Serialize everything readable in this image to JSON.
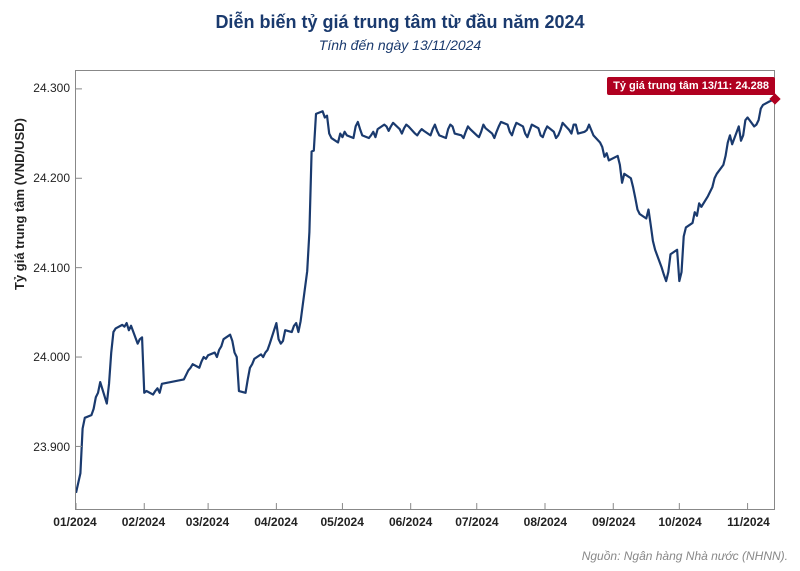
{
  "chart": {
    "type": "line",
    "title": "Diễn biến tỷ giá trung tâm từ đầu năm 2024",
    "subtitle": "Tính đến ngày 13/11/2024",
    "ylabel": "Tỷ giá trung tâm (VND/USD)",
    "source": "Nguồn: Ngân hàng Nhà nước (NHNN).",
    "line_color": "#1a3a6e",
    "line_width": 2.2,
    "background_color": "#ffffff",
    "border_color": "#888888",
    "title_color": "#1a3a6e",
    "title_fontsize": 18,
    "subtitle_fontsize": 14,
    "label_fontsize": 13,
    "tick_fontsize": 12,
    "source_color": "#888888",
    "annotation": {
      "text": "Tỷ giá trung tâm 13/11: 24.288",
      "bg_color": "#b00020",
      "text_color": "#ffffff",
      "fontsize": 11
    },
    "end_marker": {
      "color": "#b00020",
      "size": 8
    },
    "x_ticks": [
      "01/2024",
      "02/2024",
      "03/2024",
      "04/2024",
      "05/2024",
      "06/2024",
      "07/2024",
      "08/2024",
      "09/2024",
      "10/2024",
      "11/2024"
    ],
    "x_tick_positions": [
      0,
      31,
      60,
      91,
      121,
      152,
      182,
      213,
      244,
      274,
      305
    ],
    "y_ticks": [
      23900,
      24000,
      24100,
      24200,
      24300
    ],
    "ylim": [
      23830,
      24320
    ],
    "xlim": [
      0,
      317
    ],
    "data": [
      {
        "x": 0,
        "y": 23848
      },
      {
        "x": 2,
        "y": 23870
      },
      {
        "x": 3,
        "y": 23920
      },
      {
        "x": 4,
        "y": 23932
      },
      {
        "x": 7,
        "y": 23935
      },
      {
        "x": 8,
        "y": 23942
      },
      {
        "x": 9,
        "y": 23955
      },
      {
        "x": 10,
        "y": 23960
      },
      {
        "x": 11,
        "y": 23972
      },
      {
        "x": 14,
        "y": 23948
      },
      {
        "x": 15,
        "y": 23970
      },
      {
        "x": 16,
        "y": 24005
      },
      {
        "x": 17,
        "y": 24028
      },
      {
        "x": 18,
        "y": 24032
      },
      {
        "x": 21,
        "y": 24036
      },
      {
        "x": 22,
        "y": 24034
      },
      {
        "x": 23,
        "y": 24038
      },
      {
        "x": 24,
        "y": 24030
      },
      {
        "x": 25,
        "y": 24035
      },
      {
        "x": 28,
        "y": 24015
      },
      {
        "x": 29,
        "y": 24020
      },
      {
        "x": 30,
        "y": 24022
      },
      {
        "x": 31,
        "y": 23960
      },
      {
        "x": 32,
        "y": 23962
      },
      {
        "x": 35,
        "y": 23958
      },
      {
        "x": 36,
        "y": 23962
      },
      {
        "x": 37,
        "y": 23965
      },
      {
        "x": 38,
        "y": 23960
      },
      {
        "x": 39,
        "y": 23970
      },
      {
        "x": 49,
        "y": 23975
      },
      {
        "x": 50,
        "y": 23980
      },
      {
        "x": 51,
        "y": 23985
      },
      {
        "x": 52,
        "y": 23988
      },
      {
        "x": 53,
        "y": 23992
      },
      {
        "x": 56,
        "y": 23988
      },
      {
        "x": 57,
        "y": 23995
      },
      {
        "x": 58,
        "y": 24000
      },
      {
        "x": 59,
        "y": 23998
      },
      {
        "x": 60,
        "y": 24002
      },
      {
        "x": 63,
        "y": 24005
      },
      {
        "x": 64,
        "y": 24000
      },
      {
        "x": 65,
        "y": 24008
      },
      {
        "x": 66,
        "y": 24012
      },
      {
        "x": 67,
        "y": 24020
      },
      {
        "x": 70,
        "y": 24025
      },
      {
        "x": 71,
        "y": 24018
      },
      {
        "x": 72,
        "y": 24005
      },
      {
        "x": 73,
        "y": 24000
      },
      {
        "x": 74,
        "y": 23962
      },
      {
        "x": 77,
        "y": 23960
      },
      {
        "x": 78,
        "y": 23975
      },
      {
        "x": 79,
        "y": 23988
      },
      {
        "x": 80,
        "y": 23992
      },
      {
        "x": 81,
        "y": 23998
      },
      {
        "x": 84,
        "y": 24003
      },
      {
        "x": 85,
        "y": 24000
      },
      {
        "x": 86,
        "y": 24005
      },
      {
        "x": 87,
        "y": 24008
      },
      {
        "x": 88,
        "y": 24015
      },
      {
        "x": 91,
        "y": 24038
      },
      {
        "x": 92,
        "y": 24020
      },
      {
        "x": 93,
        "y": 24015
      },
      {
        "x": 94,
        "y": 24018
      },
      {
        "x": 95,
        "y": 24030
      },
      {
        "x": 98,
        "y": 24028
      },
      {
        "x": 99,
        "y": 24035
      },
      {
        "x": 100,
        "y": 24038
      },
      {
        "x": 101,
        "y": 24028
      },
      {
        "x": 102,
        "y": 24040
      },
      {
        "x": 105,
        "y": 24096
      },
      {
        "x": 106,
        "y": 24140
      },
      {
        "x": 107,
        "y": 24230
      },
      {
        "x": 108,
        "y": 24231
      },
      {
        "x": 109,
        "y": 24272
      },
      {
        "x": 112,
        "y": 24275
      },
      {
        "x": 113,
        "y": 24268
      },
      {
        "x": 114,
        "y": 24270
      },
      {
        "x": 115,
        "y": 24250
      },
      {
        "x": 116,
        "y": 24245
      },
      {
        "x": 119,
        "y": 24240
      },
      {
        "x": 120,
        "y": 24250
      },
      {
        "x": 121,
        "y": 24246
      },
      {
        "x": 122,
        "y": 24252
      },
      {
        "x": 123,
        "y": 24248
      },
      {
        "x": 126,
        "y": 24245
      },
      {
        "x": 127,
        "y": 24258
      },
      {
        "x": 128,
        "y": 24263
      },
      {
        "x": 129,
        "y": 24255
      },
      {
        "x": 130,
        "y": 24248
      },
      {
        "x": 133,
        "y": 24245
      },
      {
        "x": 134,
        "y": 24248
      },
      {
        "x": 135,
        "y": 24252
      },
      {
        "x": 136,
        "y": 24246
      },
      {
        "x": 137,
        "y": 24255
      },
      {
        "x": 140,
        "y": 24260
      },
      {
        "x": 141,
        "y": 24258
      },
      {
        "x": 142,
        "y": 24253
      },
      {
        "x": 143,
        "y": 24258
      },
      {
        "x": 144,
        "y": 24262
      },
      {
        "x": 147,
        "y": 24255
      },
      {
        "x": 148,
        "y": 24250
      },
      {
        "x": 149,
        "y": 24256
      },
      {
        "x": 150,
        "y": 24260
      },
      {
        "x": 151,
        "y": 24258
      },
      {
        "x": 154,
        "y": 24250
      },
      {
        "x": 155,
        "y": 24248
      },
      {
        "x": 156,
        "y": 24252
      },
      {
        "x": 157,
        "y": 24255
      },
      {
        "x": 158,
        "y": 24253
      },
      {
        "x": 161,
        "y": 24248
      },
      {
        "x": 162,
        "y": 24255
      },
      {
        "x": 163,
        "y": 24260
      },
      {
        "x": 164,
        "y": 24253
      },
      {
        "x": 165,
        "y": 24248
      },
      {
        "x": 168,
        "y": 24245
      },
      {
        "x": 169,
        "y": 24255
      },
      {
        "x": 170,
        "y": 24260
      },
      {
        "x": 171,
        "y": 24258
      },
      {
        "x": 172,
        "y": 24250
      },
      {
        "x": 175,
        "y": 24248
      },
      {
        "x": 176,
        "y": 24245
      },
      {
        "x": 177,
        "y": 24252
      },
      {
        "x": 178,
        "y": 24258
      },
      {
        "x": 179,
        "y": 24255
      },
      {
        "x": 182,
        "y": 24248
      },
      {
        "x": 183,
        "y": 24246
      },
      {
        "x": 184,
        "y": 24252
      },
      {
        "x": 185,
        "y": 24260
      },
      {
        "x": 186,
        "y": 24256
      },
      {
        "x": 189,
        "y": 24250
      },
      {
        "x": 190,
        "y": 24245
      },
      {
        "x": 191,
        "y": 24252
      },
      {
        "x": 192,
        "y": 24258
      },
      {
        "x": 193,
        "y": 24263
      },
      {
        "x": 196,
        "y": 24260
      },
      {
        "x": 197,
        "y": 24252
      },
      {
        "x": 198,
        "y": 24248
      },
      {
        "x": 199,
        "y": 24256
      },
      {
        "x": 200,
        "y": 24262
      },
      {
        "x": 203,
        "y": 24258
      },
      {
        "x": 204,
        "y": 24250
      },
      {
        "x": 205,
        "y": 24246
      },
      {
        "x": 206,
        "y": 24253
      },
      {
        "x": 207,
        "y": 24260
      },
      {
        "x": 210,
        "y": 24256
      },
      {
        "x": 211,
        "y": 24248
      },
      {
        "x": 212,
        "y": 24246
      },
      {
        "x": 213,
        "y": 24253
      },
      {
        "x": 214,
        "y": 24258
      },
      {
        "x": 217,
        "y": 24252
      },
      {
        "x": 218,
        "y": 24245
      },
      {
        "x": 219,
        "y": 24248
      },
      {
        "x": 220,
        "y": 24254
      },
      {
        "x": 221,
        "y": 24262
      },
      {
        "x": 224,
        "y": 24254
      },
      {
        "x": 225,
        "y": 24250
      },
      {
        "x": 226,
        "y": 24260
      },
      {
        "x": 227,
        "y": 24260
      },
      {
        "x": 228,
        "y": 24250
      },
      {
        "x": 231,
        "y": 24252
      },
      {
        "x": 232,
        "y": 24254
      },
      {
        "x": 233,
        "y": 24260
      },
      {
        "x": 234,
        "y": 24254
      },
      {
        "x": 235,
        "y": 24248
      },
      {
        "x": 238,
        "y": 24240
      },
      {
        "x": 239,
        "y": 24235
      },
      {
        "x": 240,
        "y": 24224
      },
      {
        "x": 241,
        "y": 24228
      },
      {
        "x": 242,
        "y": 24220
      },
      {
        "x": 246,
        "y": 24225
      },
      {
        "x": 247,
        "y": 24215
      },
      {
        "x": 248,
        "y": 24195
      },
      {
        "x": 249,
        "y": 24205
      },
      {
        "x": 252,
        "y": 24200
      },
      {
        "x": 253,
        "y": 24190
      },
      {
        "x": 254,
        "y": 24178
      },
      {
        "x": 255,
        "y": 24165
      },
      {
        "x": 256,
        "y": 24160
      },
      {
        "x": 259,
        "y": 24155
      },
      {
        "x": 260,
        "y": 24165
      },
      {
        "x": 261,
        "y": 24148
      },
      {
        "x": 262,
        "y": 24130
      },
      {
        "x": 263,
        "y": 24120
      },
      {
        "x": 266,
        "y": 24100
      },
      {
        "x": 267,
        "y": 24092
      },
      {
        "x": 268,
        "y": 24085
      },
      {
        "x": 269,
        "y": 24095
      },
      {
        "x": 270,
        "y": 24115
      },
      {
        "x": 273,
        "y": 24120
      },
      {
        "x": 274,
        "y": 24085
      },
      {
        "x": 275,
        "y": 24095
      },
      {
        "x": 276,
        "y": 24135
      },
      {
        "x": 277,
        "y": 24145
      },
      {
        "x": 280,
        "y": 24150
      },
      {
        "x": 281,
        "y": 24162
      },
      {
        "x": 282,
        "y": 24158
      },
      {
        "x": 283,
        "y": 24172
      },
      {
        "x": 284,
        "y": 24168
      },
      {
        "x": 287,
        "y": 24180
      },
      {
        "x": 288,
        "y": 24185
      },
      {
        "x": 289,
        "y": 24190
      },
      {
        "x": 290,
        "y": 24200
      },
      {
        "x": 291,
        "y": 24205
      },
      {
        "x": 294,
        "y": 24215
      },
      {
        "x": 295,
        "y": 24225
      },
      {
        "x": 296,
        "y": 24240
      },
      {
        "x": 297,
        "y": 24248
      },
      {
        "x": 298,
        "y": 24238
      },
      {
        "x": 301,
        "y": 24258
      },
      {
        "x": 302,
        "y": 24242
      },
      {
        "x": 303,
        "y": 24248
      },
      {
        "x": 304,
        "y": 24265
      },
      {
        "x": 305,
        "y": 24268
      },
      {
        "x": 308,
        "y": 24258
      },
      {
        "x": 309,
        "y": 24260
      },
      {
        "x": 310,
        "y": 24265
      },
      {
        "x": 311,
        "y": 24278
      },
      {
        "x": 312,
        "y": 24282
      },
      {
        "x": 315,
        "y": 24286
      },
      {
        "x": 317,
        "y": 24288
      }
    ]
  }
}
